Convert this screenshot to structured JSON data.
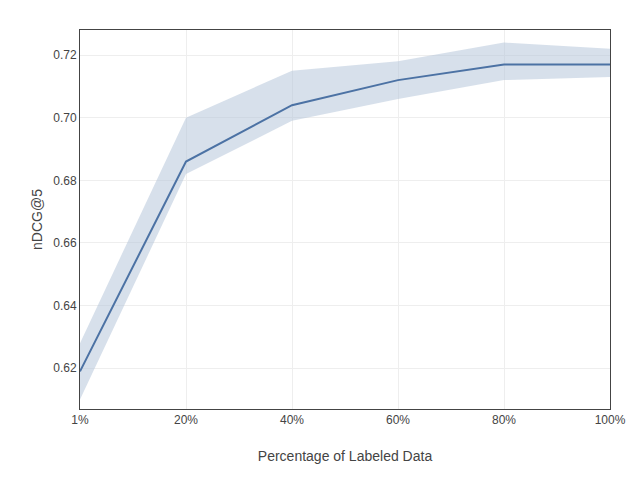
{
  "chart_data": {
    "type": "line",
    "xlabel": "Percentage of Labeled Data",
    "ylabel": "nDCG@5",
    "categories": [
      "1%",
      "20%",
      "40%",
      "60%",
      "80%",
      "100%"
    ],
    "values": [
      0.619,
      0.686,
      0.704,
      0.712,
      0.717,
      0.717
    ],
    "color": "#4c72a4",
    "band": {
      "upper": [
        0.628,
        0.7,
        0.715,
        0.718,
        0.724,
        0.722
      ],
      "lower": [
        0.61,
        0.682,
        0.699,
        0.706,
        0.712,
        0.713
      ],
      "color": "#afc1d8"
    },
    "ylim": [
      0.607,
      0.728
    ],
    "yticks": [
      0.62,
      0.64,
      0.66,
      0.68,
      {
        "value": 0.7,
        "label": "0.70"
      },
      0.72
    ],
    "grid": true
  }
}
